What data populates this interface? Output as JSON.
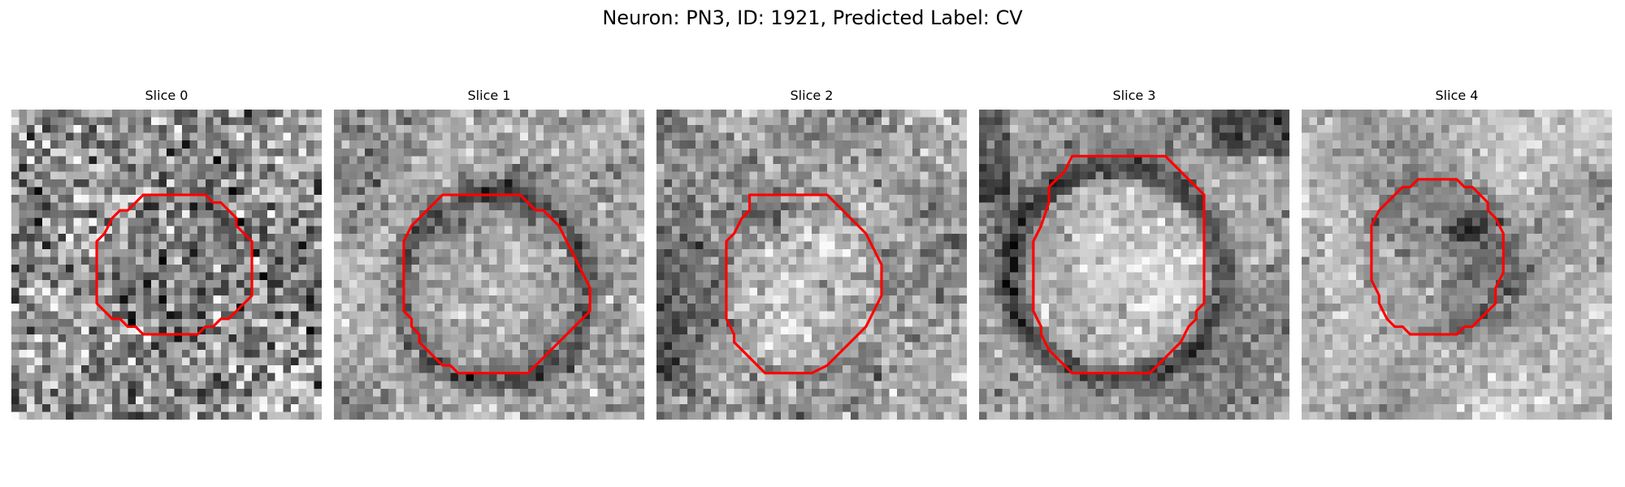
{
  "figure": {
    "title": "Neuron: PN3, ID: 1921, Predicted Label: CV"
  },
  "slices": [
    {
      "title": "Slice 0",
      "seed": 11,
      "scene": "dark_blob",
      "contour": [
        [
          17,
          11
        ],
        [
          25,
          11
        ],
        [
          26,
          12
        ],
        [
          27,
          12
        ],
        [
          28,
          13
        ],
        [
          29,
          14
        ],
        [
          29,
          15
        ],
        [
          30,
          16
        ],
        [
          31,
          17
        ],
        [
          31,
          24
        ],
        [
          30,
          25
        ],
        [
          29,
          26
        ],
        [
          28,
          27
        ],
        [
          27,
          27
        ],
        [
          26,
          28
        ],
        [
          25,
          28
        ],
        [
          24,
          29
        ],
        [
          17,
          29
        ],
        [
          16,
          28
        ],
        [
          15,
          28
        ],
        [
          14,
          27
        ],
        [
          13,
          27
        ],
        [
          12,
          26
        ],
        [
          11,
          25
        ],
        [
          11,
          17
        ],
        [
          12,
          16
        ],
        [
          13,
          14
        ],
        [
          14,
          13
        ],
        [
          15,
          13
        ],
        [
          16,
          12
        ]
      ]
    },
    {
      "title": "Slice 1",
      "seed": 23,
      "scene": "bright_ring",
      "contour": [
        [
          14,
          11
        ],
        [
          24,
          11
        ],
        [
          25,
          12
        ],
        [
          26,
          13
        ],
        [
          27,
          13
        ],
        [
          28,
          14
        ],
        [
          29,
          15
        ],
        [
          30,
          17
        ],
        [
          31,
          19
        ],
        [
          32,
          21
        ],
        [
          33,
          23
        ],
        [
          33,
          26
        ],
        [
          32,
          27
        ],
        [
          31,
          28
        ],
        [
          30,
          29
        ],
        [
          29,
          30
        ],
        [
          28,
          31
        ],
        [
          27,
          32
        ],
        [
          26,
          33
        ],
        [
          25,
          34
        ],
        [
          16,
          34
        ],
        [
          15,
          33
        ],
        [
          14,
          33
        ],
        [
          13,
          32
        ],
        [
          12,
          31
        ],
        [
          11,
          30
        ],
        [
          11,
          29
        ],
        [
          10,
          28
        ],
        [
          10,
          27
        ],
        [
          9,
          26
        ],
        [
          9,
          25
        ],
        [
          9,
          17
        ],
        [
          10,
          15
        ],
        [
          11,
          14
        ],
        [
          12,
          13
        ],
        [
          13,
          12
        ]
      ]
    },
    {
      "title": "Slice 2",
      "seed": 37,
      "scene": "faint_cell",
      "contour": [
        [
          12,
          11
        ],
        [
          22,
          11
        ],
        [
          23,
          12
        ],
        [
          24,
          13
        ],
        [
          25,
          14
        ],
        [
          26,
          15
        ],
        [
          27,
          16
        ],
        [
          28,
          18
        ],
        [
          29,
          20
        ],
        [
          29,
          24
        ],
        [
          28,
          26
        ],
        [
          27,
          28
        ],
        [
          26,
          29
        ],
        [
          25,
          30
        ],
        [
          24,
          31
        ],
        [
          23,
          32
        ],
        [
          22,
          33
        ],
        [
          20,
          34
        ],
        [
          14,
          34
        ],
        [
          13,
          33
        ],
        [
          12,
          32
        ],
        [
          11,
          31
        ],
        [
          10,
          30
        ],
        [
          10,
          29
        ],
        [
          9,
          27
        ],
        [
          9,
          25
        ],
        [
          9,
          17
        ],
        [
          10,
          16
        ],
        [
          11,
          14
        ],
        [
          12,
          13
        ]
      ]
    },
    {
      "title": "Slice 3",
      "seed": 53,
      "scene": "big_bright",
      "contour": [
        [
          12,
          6
        ],
        [
          24,
          6
        ],
        [
          25,
          7
        ],
        [
          26,
          8
        ],
        [
          27,
          9
        ],
        [
          28,
          10
        ],
        [
          29,
          11
        ],
        [
          29,
          25
        ],
        [
          28,
          26
        ],
        [
          28,
          27
        ],
        [
          27,
          28
        ],
        [
          26,
          30
        ],
        [
          25,
          31
        ],
        [
          24,
          32
        ],
        [
          23,
          33
        ],
        [
          22,
          34
        ],
        [
          12,
          34
        ],
        [
          11,
          33
        ],
        [
          10,
          32
        ],
        [
          9,
          31
        ],
        [
          8,
          29
        ],
        [
          8,
          28
        ],
        [
          7,
          26
        ],
        [
          7,
          25
        ],
        [
          7,
          17
        ],
        [
          8,
          15
        ],
        [
          9,
          12
        ],
        [
          9,
          10
        ],
        [
          10,
          9
        ],
        [
          11,
          8
        ]
      ]
    },
    {
      "title": "Slice 4",
      "seed": 71,
      "scene": "dark_nucleus",
      "contour": [
        [
          15,
          9
        ],
        [
          20,
          9
        ],
        [
          21,
          10
        ],
        [
          22,
          10
        ],
        [
          23,
          11
        ],
        [
          24,
          12
        ],
        [
          24,
          13
        ],
        [
          25,
          14
        ],
        [
          26,
          16
        ],
        [
          26,
          21
        ],
        [
          25,
          23
        ],
        [
          25,
          25
        ],
        [
          24,
          26
        ],
        [
          23,
          27
        ],
        [
          22,
          28
        ],
        [
          21,
          28
        ],
        [
          20,
          29
        ],
        [
          14,
          29
        ],
        [
          13,
          28
        ],
        [
          12,
          28
        ],
        [
          11,
          27
        ],
        [
          10,
          25
        ],
        [
          10,
          24
        ],
        [
          9,
          22
        ],
        [
          9,
          15
        ],
        [
          10,
          13
        ],
        [
          11,
          12
        ],
        [
          12,
          11
        ],
        [
          13,
          10
        ],
        [
          14,
          10
        ]
      ]
    }
  ]
}
